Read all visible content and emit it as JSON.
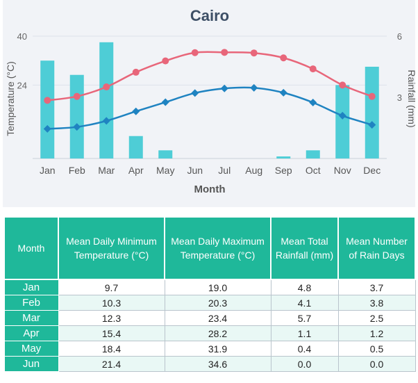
{
  "chart_data": {
    "type": "bar+line",
    "title": "Cairo",
    "xlabel": "Month",
    "ylabel_left": "Temperature (°C)",
    "ylabel_right": "Rainfall (mm)",
    "categories": [
      "Jan",
      "Feb",
      "Mar",
      "Apr",
      "May",
      "Jun",
      "Jul",
      "Aug",
      "Sep",
      "Oct",
      "Nov",
      "Dec"
    ],
    "left_ticks": [
      "40",
      "24"
    ],
    "right_ticks": [
      "6",
      "3"
    ],
    "ylim_left": [
      0,
      40
    ],
    "ylim_right": [
      0,
      6
    ],
    "grid": true,
    "series": [
      {
        "kind": "bar",
        "axis": "right",
        "color": "#4ecdd6",
        "values": [
          4.8,
          4.1,
          5.7,
          1.1,
          0.4,
          0.0,
          0.0,
          0.0,
          0.1,
          0.4,
          3.6,
          4.5
        ]
      },
      {
        "kind": "line",
        "axis": "left",
        "color": "#e8667a",
        "marker": "circle",
        "values": [
          19.0,
          20.3,
          23.4,
          28.2,
          31.9,
          34.6,
          34.7,
          34.5,
          32.9,
          29.3,
          24.0,
          20.3
        ]
      },
      {
        "kind": "line",
        "axis": "left",
        "color": "#1f83c1",
        "marker": "diamond",
        "values": [
          9.7,
          10.3,
          12.3,
          15.4,
          18.4,
          21.4,
          22.9,
          23.1,
          21.5,
          18.3,
          14.0,
          11.0
        ]
      }
    ]
  },
  "table": {
    "headers": [
      "Month",
      "Mean Daily Minimum Temperature (°C)",
      "Mean Daily Maximum Temperature (°C)",
      "Mean Total Rainfall (mm)",
      "Mean Number of Rain Days"
    ],
    "rows": [
      {
        "month": "Jan",
        "min": "9.7",
        "max": "19.0",
        "rain": "4.8",
        "days": "3.7"
      },
      {
        "month": "Feb",
        "min": "10.3",
        "max": "20.3",
        "rain": "4.1",
        "days": "3.8"
      },
      {
        "month": "Mar",
        "min": "12.3",
        "max": "23.4",
        "rain": "5.7",
        "days": "2.5"
      },
      {
        "month": "Apr",
        "min": "15.4",
        "max": "28.2",
        "rain": "1.1",
        "days": "1.2"
      },
      {
        "month": "May",
        "min": "18.4",
        "max": "31.9",
        "rain": "0.4",
        "days": "0.5"
      },
      {
        "month": "Jun",
        "min": "21.4",
        "max": "34.6",
        "rain": "0.0",
        "days": "0.0"
      }
    ]
  },
  "colors": {
    "header_bg": "#1fb89a",
    "row_alt_bg": "#e9f8f5",
    "bar": "#4ecdd6",
    "max_line": "#e8667a",
    "min_line": "#1f83c1"
  }
}
